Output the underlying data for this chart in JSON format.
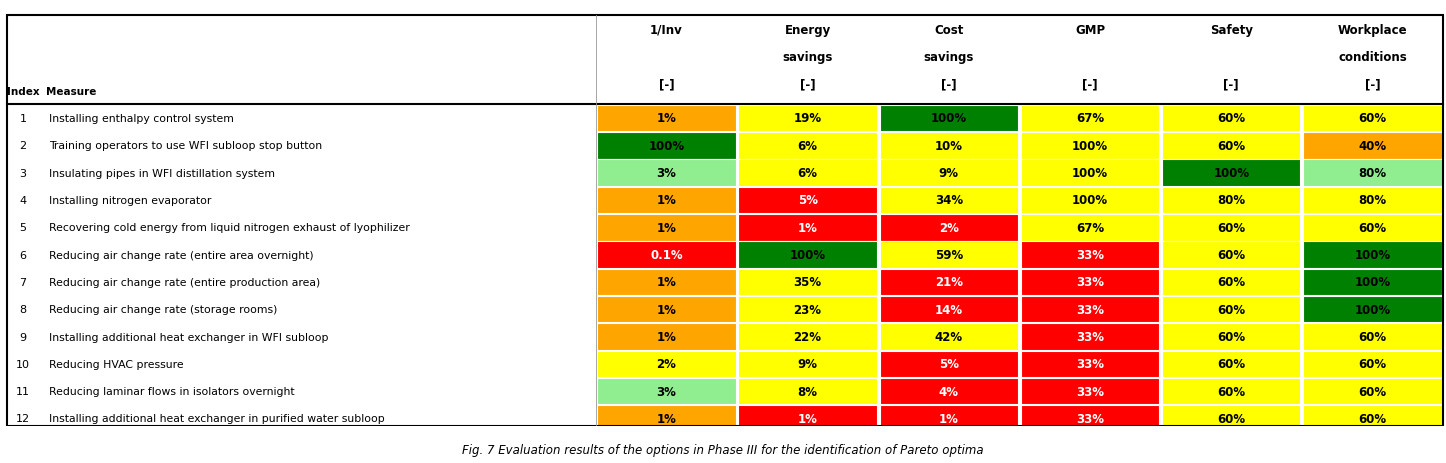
{
  "title": "Fig. 7 Evaluation results of the options in Phase III for the identification of Pareto optima",
  "col_headers_line1": [
    "1/Inv",
    "Energy",
    "Cost",
    "GMP",
    "Safety",
    "Workplace"
  ],
  "col_headers_line2": [
    "",
    "savings",
    "savings",
    "",
    "",
    "conditions"
  ],
  "col_headers_line3": [
    "[-]",
    "[-]",
    "[-]",
    "[-]",
    "[-]",
    "[-]"
  ],
  "row_indices": [
    "1",
    "2",
    "3",
    "4",
    "5",
    "6",
    "7",
    "8",
    "9",
    "10",
    "11",
    "12"
  ],
  "measures": [
    "Installing enthalpy control system",
    "Training operators to use WFI subloop stop button",
    "Insulating pipes in WFI distillation system",
    "Installing nitrogen evaporator",
    "Recovering cold energy from liquid nitrogen exhaust of lyophilizer",
    "Reducing air change rate (entire area overnight)",
    "Reducing air change rate (entire production area)",
    "Reducing air change rate (storage rooms)",
    "Installing additional heat exchanger in WFI subloop",
    "Reducing HVAC pressure",
    "Reducing laminar flows in isolators overnight",
    "Installing additional heat exchanger in purified water subloop"
  ],
  "values": [
    [
      "1%",
      "19%",
      "100%",
      "67%",
      "60%",
      "60%"
    ],
    [
      "100%",
      "6%",
      "10%",
      "100%",
      "60%",
      "40%"
    ],
    [
      "3%",
      "6%",
      "9%",
      "100%",
      "100%",
      "80%"
    ],
    [
      "1%",
      "5%",
      "34%",
      "100%",
      "80%",
      "80%"
    ],
    [
      "1%",
      "1%",
      "2%",
      "67%",
      "60%",
      "60%"
    ],
    [
      "0.1%",
      "100%",
      "59%",
      "33%",
      "60%",
      "100%"
    ],
    [
      "1%",
      "35%",
      "21%",
      "33%",
      "60%",
      "100%"
    ],
    [
      "1%",
      "23%",
      "14%",
      "33%",
      "60%",
      "100%"
    ],
    [
      "1%",
      "22%",
      "42%",
      "33%",
      "60%",
      "60%"
    ],
    [
      "2%",
      "9%",
      "5%",
      "33%",
      "60%",
      "60%"
    ],
    [
      "3%",
      "8%",
      "4%",
      "33%",
      "60%",
      "60%"
    ],
    [
      "1%",
      "1%",
      "1%",
      "33%",
      "60%",
      "60%"
    ]
  ],
  "colors": [
    [
      "#FFA500",
      "#FFFF00",
      "#008000",
      "#FFFF00",
      "#FFFF00",
      "#FFFF00"
    ],
    [
      "#008000",
      "#FFFF00",
      "#FFFF00",
      "#FFFF00",
      "#FFFF00",
      "#FFA500"
    ],
    [
      "#90EE90",
      "#FFFF00",
      "#FFFF00",
      "#FFFF00",
      "#008000",
      "#90EE90"
    ],
    [
      "#FFA500",
      "#FF0000",
      "#FFFF00",
      "#FFFF00",
      "#FFFF00",
      "#FFFF00"
    ],
    [
      "#FFA500",
      "#FF0000",
      "#FF0000",
      "#FFFF00",
      "#FFFF00",
      "#FFFF00"
    ],
    [
      "#FF0000",
      "#008000",
      "#FFFF00",
      "#FF0000",
      "#FFFF00",
      "#008000"
    ],
    [
      "#FFA500",
      "#FFFF00",
      "#FF0000",
      "#FF0000",
      "#FFFF00",
      "#008000"
    ],
    [
      "#FFA500",
      "#FFFF00",
      "#FF0000",
      "#FF0000",
      "#FFFF00",
      "#008000"
    ],
    [
      "#FFA500",
      "#FFFF00",
      "#FFFF00",
      "#FF0000",
      "#FFFF00",
      "#FFFF00"
    ],
    [
      "#FFFF00",
      "#FFFF00",
      "#FF0000",
      "#FF0000",
      "#FFFF00",
      "#FFFF00"
    ],
    [
      "#90EE90",
      "#FFFF00",
      "#FF0000",
      "#FF0000",
      "#FFFF00",
      "#FFFF00"
    ],
    [
      "#FFA500",
      "#FF0000",
      "#FF0000",
      "#FF0000",
      "#FFFF00",
      "#FFFF00"
    ]
  ],
  "text_colors": [
    [
      "#000000",
      "#000000",
      "#000000",
      "#000000",
      "#000000",
      "#000000"
    ],
    [
      "#000000",
      "#000000",
      "#000000",
      "#000000",
      "#000000",
      "#000000"
    ],
    [
      "#000000",
      "#000000",
      "#000000",
      "#000000",
      "#000000",
      "#000000"
    ],
    [
      "#000000",
      "#FFFFFF",
      "#000000",
      "#000000",
      "#000000",
      "#000000"
    ],
    [
      "#000000",
      "#FFFFFF",
      "#FFFFFF",
      "#000000",
      "#000000",
      "#000000"
    ],
    [
      "#FFFFFF",
      "#000000",
      "#000000",
      "#FFFFFF",
      "#000000",
      "#000000"
    ],
    [
      "#000000",
      "#000000",
      "#FFFFFF",
      "#FFFFFF",
      "#000000",
      "#000000"
    ],
    [
      "#000000",
      "#000000",
      "#FFFFFF",
      "#FFFFFF",
      "#000000",
      "#000000"
    ],
    [
      "#000000",
      "#000000",
      "#000000",
      "#FFFFFF",
      "#000000",
      "#000000"
    ],
    [
      "#000000",
      "#000000",
      "#FFFFFF",
      "#FFFFFF",
      "#000000",
      "#000000"
    ],
    [
      "#000000",
      "#000000",
      "#FFFFFF",
      "#FFFFFF",
      "#000000",
      "#000000"
    ],
    [
      "#000000",
      "#FFFFFF",
      "#FFFFFF",
      "#FFFFFF",
      "#000000",
      "#000000"
    ]
  ],
  "figsize": [
    14.46,
    4.64
  ],
  "dpi": 100
}
